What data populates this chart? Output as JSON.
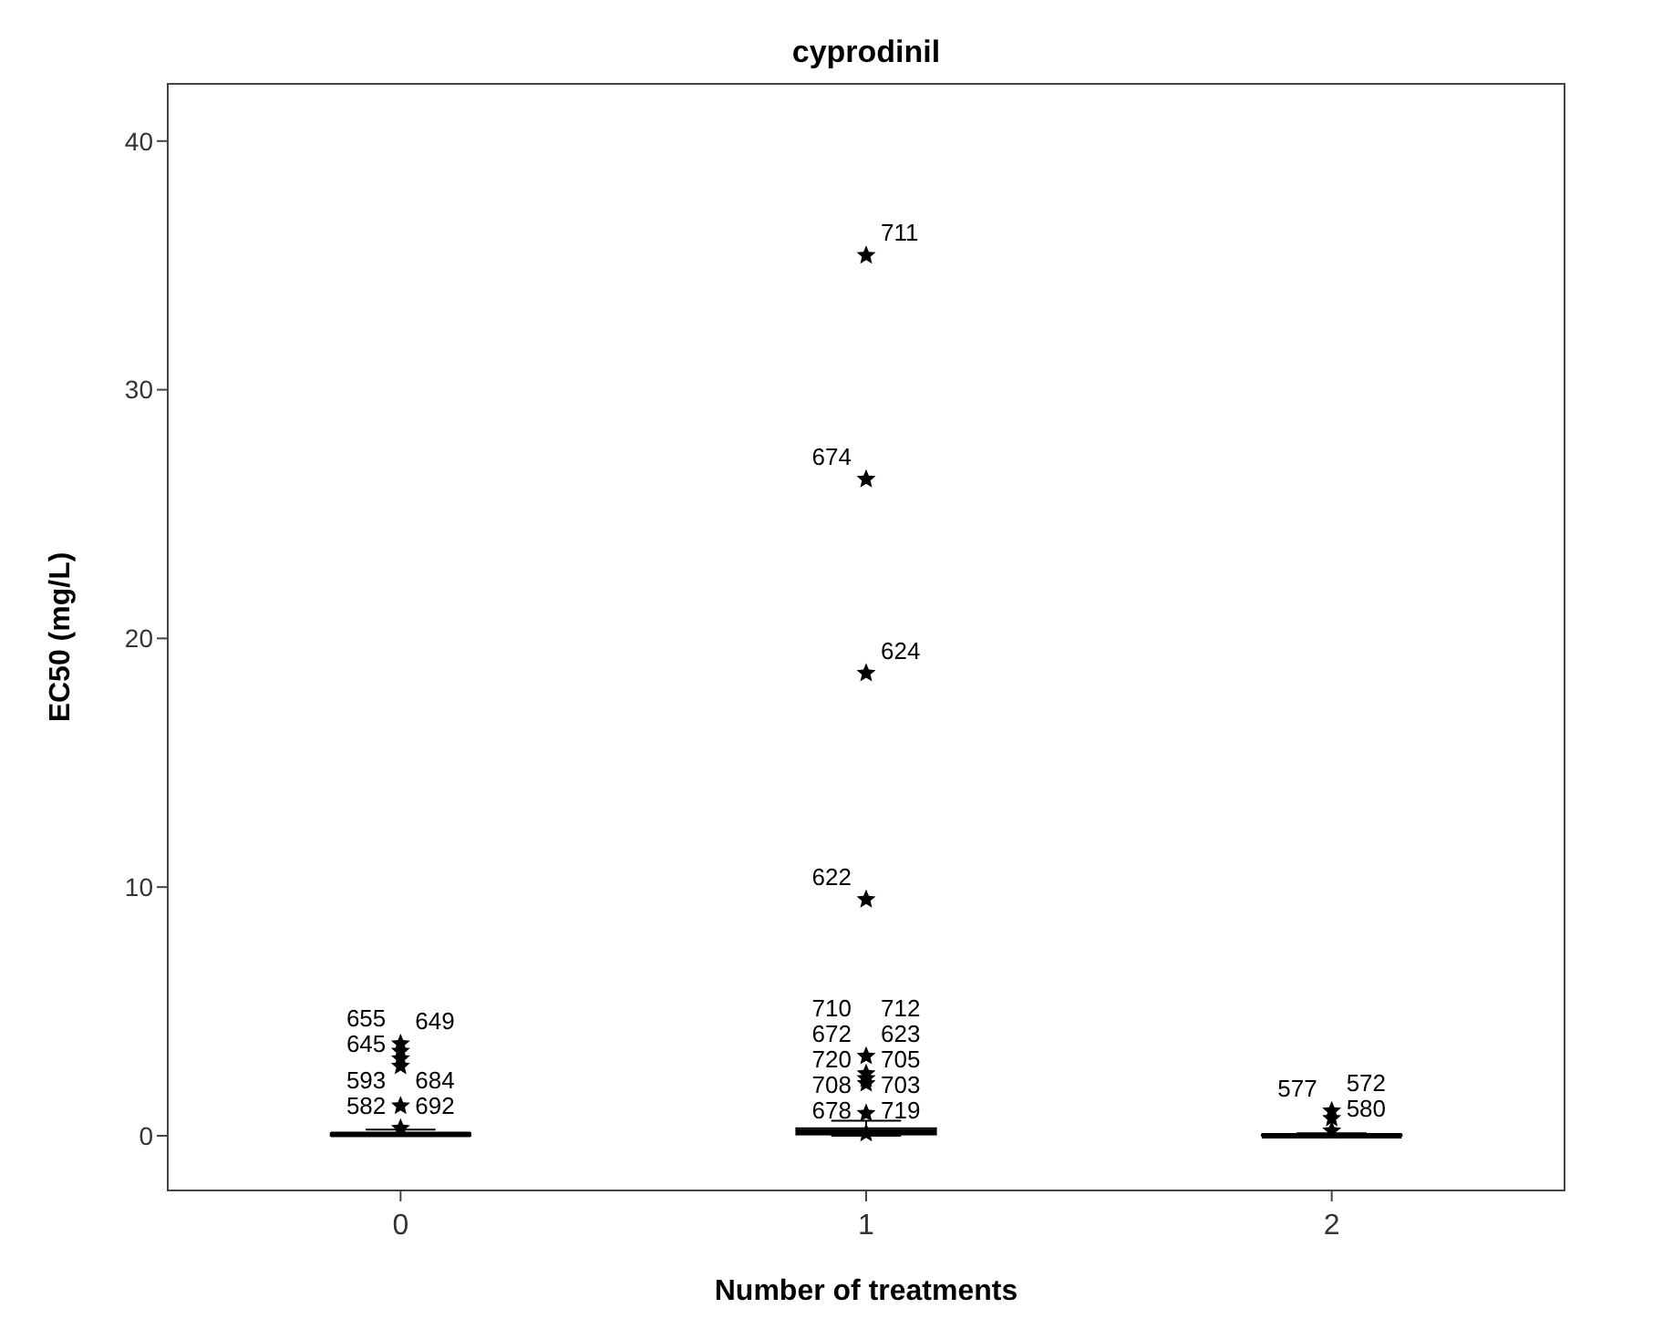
{
  "chart_data": {
    "type": "box",
    "title": "cyprodinil",
    "xlabel": "Number of treatments",
    "ylabel": "EC50 (mg/L)",
    "categories": [
      "0",
      "1",
      "2"
    ],
    "boxes": [
      {
        "low": 0,
        "q1": 0,
        "median": 0.05,
        "q3": 0.1,
        "high": 0.25
      },
      {
        "low": 0,
        "q1": 0.05,
        "median": 0.15,
        "q3": 0.3,
        "high": 0.6
      },
      {
        "low": 0,
        "q1": 0,
        "median": 0,
        "q3": 0.05,
        "high": 0.1
      }
    ],
    "series": [
      {
        "type": "scatter",
        "color": "#000000",
        "x": [
          "0",
          "0",
          "0",
          "0",
          "0",
          "0",
          "1",
          "1",
          "1",
          "1",
          "1",
          "1",
          "1",
          "1",
          "1",
          "1",
          "2",
          "2",
          "2"
        ],
        "values": [
          3.7,
          3.4,
          3.1,
          2.8,
          1.2,
          0.3,
          35.4,
          26.4,
          18.6,
          9.5,
          3.2,
          2.5,
          2.3,
          2.1,
          0.9,
          0.1,
          1.0,
          0.7,
          0.2
        ]
      }
    ],
    "ylim": [
      -2.2,
      42.3
    ],
    "yticks": [
      0,
      10,
      20,
      30,
      40
    ],
    "marker": "star",
    "grid": false,
    "annotations": [
      {
        "text": "655",
        "x": "0",
        "y": 3.7
      },
      {
        "text": "649",
        "x": "0",
        "y": 3.7
      },
      {
        "text": "645",
        "x": "0",
        "y": 2.8
      },
      {
        "text": "684",
        "x": "0",
        "y": 1.2
      },
      {
        "text": "593",
        "x": "0",
        "y": 1.2
      },
      {
        "text": "692",
        "x": "0",
        "y": 0.3
      },
      {
        "text": "582",
        "x": "0",
        "y": 0.3
      },
      {
        "text": "711",
        "x": "1",
        "y": 35.4
      },
      {
        "text": "674",
        "x": "1",
        "y": 26.4
      },
      {
        "text": "624",
        "x": "1",
        "y": 18.6
      },
      {
        "text": "622",
        "x": "1",
        "y": 9.5
      },
      {
        "text": "712",
        "x": "1",
        "y": 3.2
      },
      {
        "text": "710",
        "x": "1",
        "y": 3.2
      },
      {
        "text": "623",
        "x": "1",
        "y": 2.3
      },
      {
        "text": "672",
        "x": "1",
        "y": 2.5
      },
      {
        "text": "705",
        "x": "1",
        "y": 2.1
      },
      {
        "text": "720",
        "x": "1",
        "y": 2.1
      },
      {
        "text": "703",
        "x": "1",
        "y": 0.9
      },
      {
        "text": "708",
        "x": "1",
        "y": 0.9
      },
      {
        "text": "719",
        "x": "1",
        "y": 0.1
      },
      {
        "text": "678",
        "x": "1",
        "y": 0.1
      },
      {
        "text": "572",
        "x": "2",
        "y": 0.7
      },
      {
        "text": "577",
        "x": "2",
        "y": 1.0
      },
      {
        "text": "580",
        "x": "2",
        "y": 0.2
      }
    ]
  }
}
